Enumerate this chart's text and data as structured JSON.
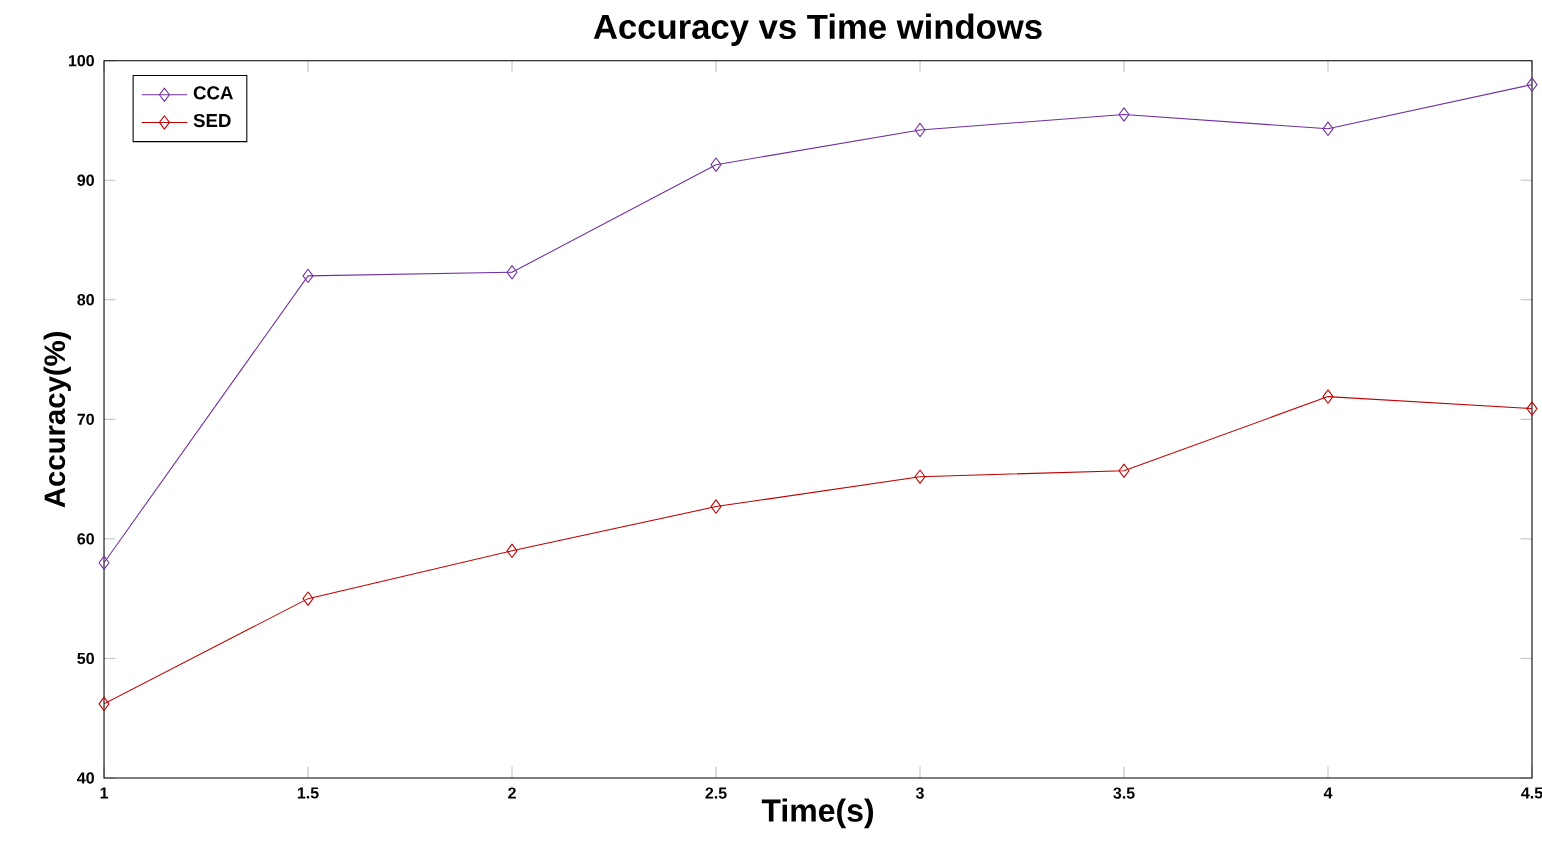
{
  "chart_data": {
    "type": "line",
    "title": "Accuracy vs Time windows",
    "xlabel": "Time(s)",
    "ylabel": "Accuracy(%)",
    "x": [
      1,
      1.5,
      2,
      2.5,
      3,
      3.5,
      4,
      4.5
    ],
    "series": [
      {
        "name": "CCA",
        "color": "#7030a0",
        "values": [
          58,
          82,
          82.3,
          91.3,
          94.2,
          95.5,
          94.3,
          98
        ]
      },
      {
        "name": "SED",
        "color": "#c00000",
        "values": [
          46.2,
          55,
          59,
          62.7,
          65.2,
          65.7,
          71.9,
          70.9
        ]
      }
    ],
    "xlim": [
      1,
      4.5
    ],
    "xticks": [
      1,
      1.5,
      2,
      2.5,
      3,
      3.5,
      4,
      4.5
    ],
    "ylim": [
      40,
      100
    ],
    "yticks": [
      40,
      50,
      60,
      70,
      80,
      90,
      100
    ],
    "grid": false,
    "legend": "top left",
    "marker": "diamond",
    "line_style": "solid"
  }
}
